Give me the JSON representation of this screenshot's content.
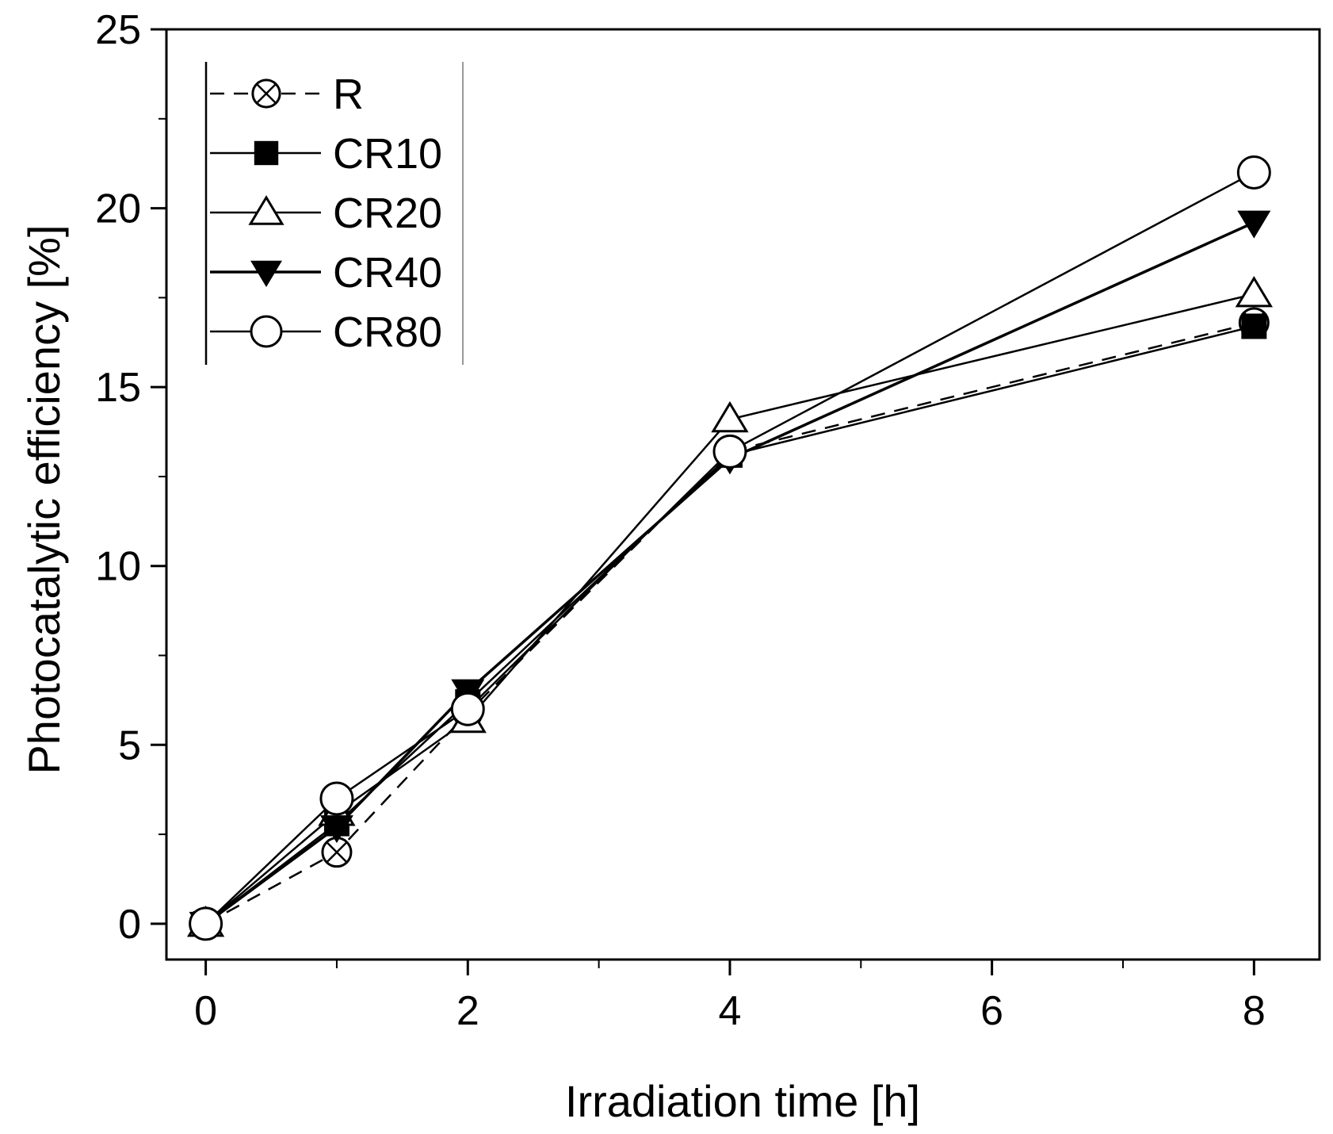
{
  "chart_data": {
    "type": "line",
    "title": "",
    "xlabel": "Irradiation time [h]",
    "ylabel": "Photocatalytic efficiency [%]",
    "xlim": [
      -0.3,
      8.5
    ],
    "ylim": [
      -1,
      25
    ],
    "xticks": [
      0,
      2,
      4,
      6,
      8
    ],
    "xticks_minor": [
      1,
      3,
      5,
      7
    ],
    "yticks": [
      0,
      5,
      10,
      15,
      20,
      25
    ],
    "grid": false,
    "legend_position": "top-left",
    "x": [
      0,
      1,
      2,
      4,
      8
    ],
    "series": [
      {
        "name": "R",
        "values": [
          0,
          2.0,
          5.9,
          13.2,
          16.8
        ],
        "line": "dashed",
        "marker": "crossed-circle"
      },
      {
        "name": "CR10",
        "values": [
          0,
          2.8,
          6.2,
          13.1,
          16.7
        ],
        "line": "solid",
        "marker": "filled-square"
      },
      {
        "name": "CR20",
        "values": [
          0,
          3.1,
          5.7,
          14.1,
          17.6
        ],
        "line": "solid",
        "marker": "open-triangle"
      },
      {
        "name": "CR40",
        "values": [
          0,
          2.7,
          6.5,
          13.0,
          19.6
        ],
        "line": "solid",
        "marker": "filled-triangle-down"
      },
      {
        "name": "CR80",
        "values": [
          0,
          3.5,
          6.0,
          13.2,
          21.0
        ],
        "line": "solid",
        "marker": "open-circle"
      }
    ]
  }
}
